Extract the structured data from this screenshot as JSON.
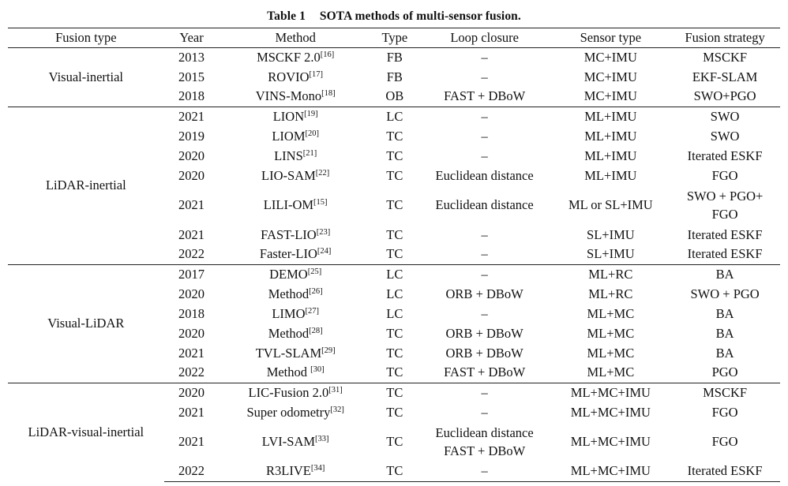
{
  "caption": {
    "label": "Table 1",
    "title": "SOTA methods of multi-sensor fusion."
  },
  "headers": {
    "fusion_type": "Fusion type",
    "year": "Year",
    "method": "Method",
    "type": "Type",
    "loop_closure": "Loop closure",
    "sensor_type": "Sensor type",
    "fusion_strategy": "Fusion strategy"
  },
  "groups": [
    {
      "fusion_type": "Visual-inertial",
      "rows": [
        {
          "year": "2013",
          "method": "MSCKF 2.0",
          "ref": "[16]",
          "type": "FB",
          "loop": "–",
          "sensor": "MC+IMU",
          "strategy": "MSCKF"
        },
        {
          "year": "2015",
          "method": "ROVIO",
          "ref": "[17]",
          "type": "FB",
          "loop": "–",
          "sensor": "MC+IMU",
          "strategy": "EKF-SLAM"
        },
        {
          "year": "2018",
          "method": "VINS-Mono",
          "ref": "[18]",
          "type": "OB",
          "loop": "FAST + DBoW",
          "sensor": "MC+IMU",
          "strategy": "SWO+PGO"
        }
      ]
    },
    {
      "fusion_type": "LiDAR-inertial",
      "rows": [
        {
          "year": "2021",
          "method": "LION",
          "ref": "[19]",
          "type": "LC",
          "loop": "–",
          "sensor": "ML+IMU",
          "strategy": "SWO"
        },
        {
          "year": "2019",
          "method": "LIOM",
          "ref": "[20]",
          "type": "TC",
          "loop": "–",
          "sensor": "ML+IMU",
          "strategy": "SWO"
        },
        {
          "year": "2020",
          "method": "LINS",
          "ref": "[21]",
          "type": "TC",
          "loop": "–",
          "sensor": "ML+IMU",
          "strategy": "Iterated ESKF"
        },
        {
          "year": "2020",
          "method": "LIO-SAM",
          "ref": "[22]",
          "type": "TC",
          "loop": "Euclidean distance",
          "sensor": "ML+IMU",
          "strategy": "FGO"
        },
        {
          "year": "2021",
          "method": "LILI-OM",
          "ref": "[15]",
          "type": "TC",
          "loop": "Euclidean distance",
          "sensor": "ML or SL+IMU",
          "strategy": "SWO + PGO+",
          "strategy2": "FGO"
        },
        {
          "year": "2021",
          "method": "FAST-LIO",
          "ref": "[23]",
          "type": "TC",
          "loop": "–",
          "sensor": "SL+IMU",
          "strategy": "Iterated ESKF"
        },
        {
          "year": "2022",
          "method": "Faster-LIO",
          "ref": "[24]",
          "type": "TC",
          "loop": "–",
          "sensor": "SL+IMU",
          "strategy": "Iterated ESKF"
        }
      ]
    },
    {
      "fusion_type": "Visual-LiDAR",
      "rows": [
        {
          "year": "2017",
          "method": "DEMO",
          "ref": "[25]",
          "type": "LC",
          "loop": "–",
          "sensor": "ML+RC",
          "strategy": "BA"
        },
        {
          "year": "2020",
          "method": "Method",
          "ref": "[26]",
          "type": "LC",
          "loop": "ORB + DBoW",
          "sensor": "ML+RC",
          "strategy": "SWO + PGO"
        },
        {
          "year": "2018",
          "method": "LIMO",
          "ref": "[27]",
          "type": "LC",
          "loop": "–",
          "sensor": "ML+MC",
          "strategy": "BA"
        },
        {
          "year": "2020",
          "method": "Method",
          "ref": "[28]",
          "type": "TC",
          "loop": "ORB + DBoW",
          "sensor": "ML+MC",
          "strategy": "BA"
        },
        {
          "year": "2021",
          "method": "TVL-SLAM",
          "ref": "[29]",
          "type": "TC",
          "loop": "ORB + DBoW",
          "sensor": "ML+MC",
          "strategy": "BA"
        },
        {
          "year": "2022",
          "method": "Method ",
          "ref": "[30]",
          "type": "TC",
          "loop": "FAST + DBoW",
          "sensor": "ML+MC",
          "strategy": "PGO"
        }
      ]
    },
    {
      "fusion_type": "LiDAR-visual-inertial",
      "rows": [
        {
          "year": "2020",
          "method": "LIC-Fusion 2.0",
          "ref": "[31]",
          "type": "TC",
          "loop": "–",
          "sensor": "ML+MC+IMU",
          "strategy": "MSCKF"
        },
        {
          "year": "2021",
          "method": "Super odometry",
          "ref": "[32]",
          "type": "TC",
          "loop": "–",
          "sensor": "ML+MC+IMU",
          "strategy": "FGO"
        },
        {
          "year": "2021",
          "method": "LVI-SAM",
          "ref": "[33]",
          "type": "TC",
          "loop": "Euclidean distance",
          "loop2": "FAST + DBoW",
          "sensor": "ML+MC+IMU",
          "strategy": "FGO"
        },
        {
          "year": "2022",
          "method": "R3LIVE",
          "ref": "[34]",
          "type": "TC",
          "loop": "–",
          "sensor": "ML+MC+IMU",
          "strategy": "Iterated ESKF"
        }
      ]
    }
  ]
}
